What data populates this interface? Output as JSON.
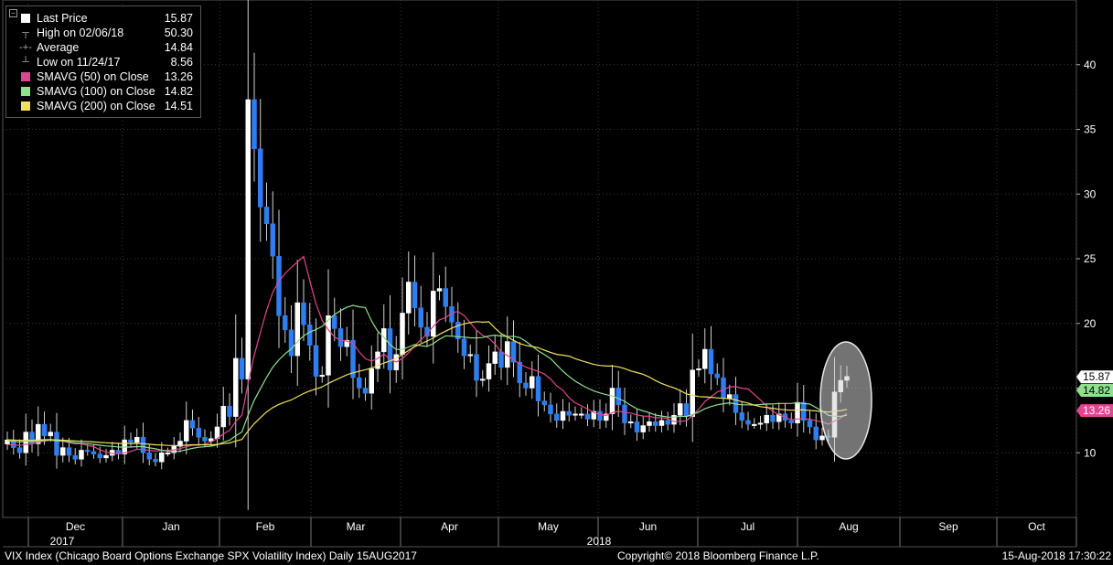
{
  "legend": {
    "items": [
      {
        "label": "Last Price",
        "value": "15.87",
        "marker": "square",
        "color": "#ffffff"
      },
      {
        "label": "High on 02/06/18",
        "value": "50.30",
        "marker": "high"
      },
      {
        "label": "Average",
        "value": "14.84",
        "marker": "avg"
      },
      {
        "label": "Low on 11/24/17",
        "value": "8.56",
        "marker": "low"
      },
      {
        "label": "SMAVG (50) on Close",
        "value": "13.26",
        "marker": "square",
        "color": "#e0468f"
      },
      {
        "label": "SMAVG (100) on Close",
        "value": "14.82",
        "marker": "square",
        "color": "#8fe08f"
      },
      {
        "label": "SMAVG (200) on Close",
        "value": "14.51",
        "marker": "square",
        "color": "#f0e060"
      }
    ]
  },
  "footer": {
    "left": "VIX Index (Chicago Board Options Exchange SPX Volatility Index)  Daily 15AUG2017",
    "center": "Copyright© 2018 Bloomberg Finance L.P.",
    "right": "15-Aug-2018 17:30:22"
  },
  "chart_data": {
    "type": "candlestick",
    "x_tick_labels": [
      "Dec",
      "Jan",
      "Feb",
      "Mar",
      "Apr",
      "May",
      "Jun",
      "Jul",
      "Aug",
      "Sep",
      "Oct"
    ],
    "year_labels": [
      {
        "label": "2017",
        "after": "Nov"
      },
      {
        "label": "2018",
        "after": "May"
      }
    ],
    "y_ticks": [
      10,
      15,
      20,
      25,
      30,
      35,
      40
    ],
    "ylim": [
      5,
      45
    ],
    "grid": true,
    "last_price_tags": [
      {
        "value": 15.87,
        "label": "15.87",
        "color": "#ffffff",
        "text_color": "#000000"
      },
      {
        "value": 14.82,
        "label": "14.82",
        "color": "#8fe08f",
        "text_color": "#000000"
      },
      {
        "value": 13.26,
        "label": "13.26",
        "color": "#e0468f",
        "text_color": "#ffffff"
      }
    ],
    "close_series": [
      11.0,
      10.4,
      10.0,
      11.6,
      10.7,
      12.2,
      11.3,
      11.6,
      9.8,
      10.4,
      9.8,
      9.5,
      10.2,
      10.1,
      9.9,
      9.6,
      9.8,
      10.2,
      9.9,
      11.0,
      10.8,
      11.2,
      10.0,
      9.5,
      9.3,
      10.0,
      10.0,
      10.5,
      10.9,
      12.5,
      11.9,
      11.2,
      10.9,
      11.1,
      12.0,
      13.6,
      12.8,
      17.3,
      15.7,
      37.3,
      33.5,
      29.0,
      27.7,
      25.2,
      20.6,
      19.5,
      17.5,
      21.6,
      19.9,
      18.3,
      15.9,
      16.0,
      20.6,
      19.6,
      18.2,
      18.7,
      15.8,
      15.0,
      14.6,
      16.5,
      17.8,
      19.6,
      16.4,
      17.6,
      20.8,
      23.2,
      21.2,
      19.7,
      19.0,
      22.5,
      22.7,
      21.3,
      20.1,
      18.8,
      17.5,
      17.6,
      15.6,
      15.7,
      16.9,
      17.8,
      16.6,
      18.6,
      17.0,
      15.4,
      15.0,
      15.9,
      14.0,
      13.7,
      13.0,
      12.5,
      13.2,
      12.9,
      13.0,
      13.0,
      12.6,
      13.2,
      12.5,
      13.0,
      15.0,
      13.7,
      12.3,
      12.4,
      11.6,
      12.1,
      12.4,
      12.1,
      12.5,
      12.2,
      12.9,
      13.8,
      12.8,
      16.4,
      16.5,
      18.0,
      16.1,
      15.8,
      14.2,
      14.5,
      13.1,
      12.5,
      12.2,
      12.2,
      12.3,
      12.9,
      12.4,
      13.0,
      12.5,
      12.3,
      13.9,
      12.5,
      12.0,
      11.0,
      11.3,
      11.2,
      14.7,
      15.6,
      15.9
    ]
  }
}
